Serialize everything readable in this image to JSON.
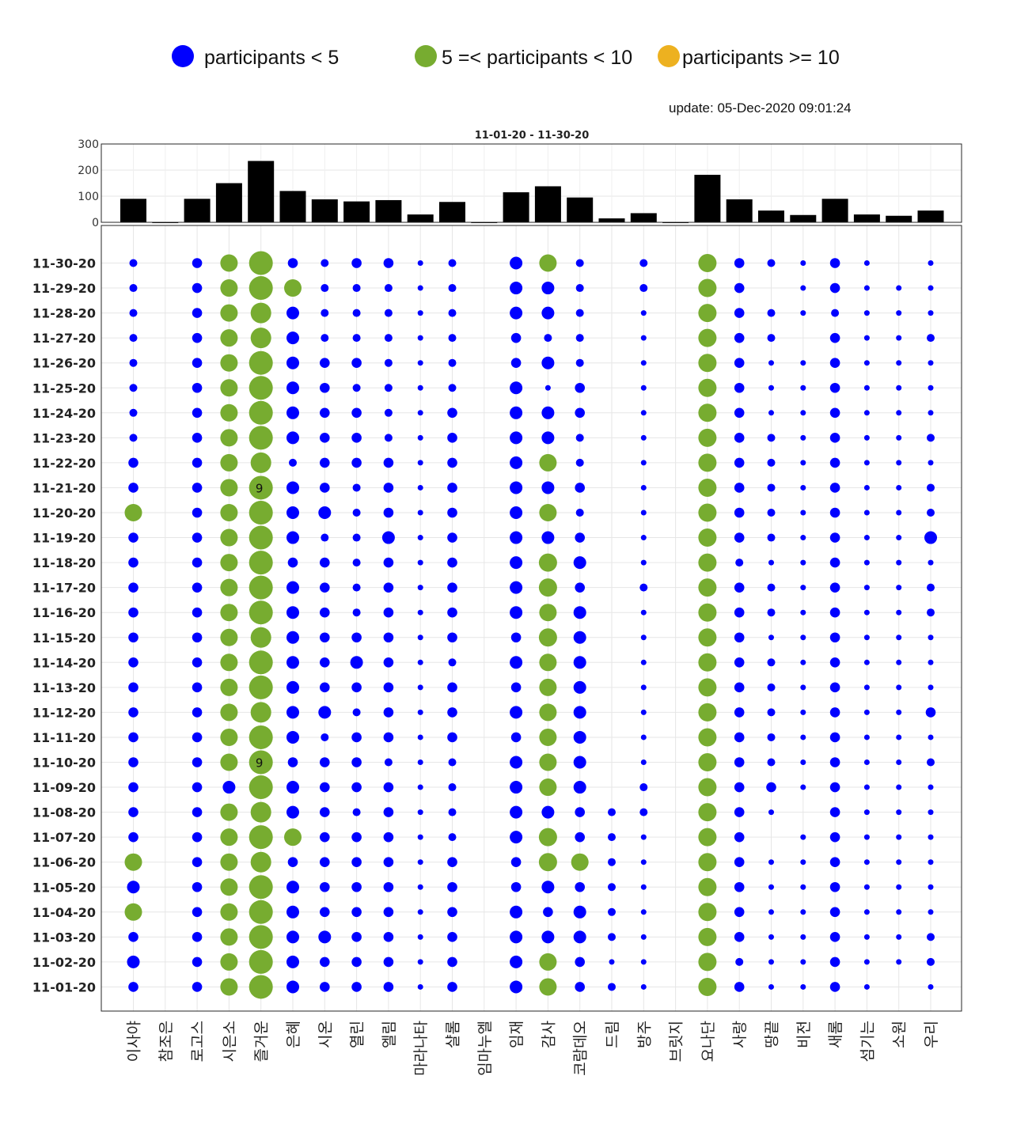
{
  "legend": [
    {
      "label": "participants < 5",
      "color": "#0000ff"
    },
    {
      "label": "5 =< participants < 10",
      "color": "#77ac30"
    },
    {
      "label": "participants >= 10",
      "color": "#edb120"
    }
  ],
  "update_text": "update: 05-Dec-2020 09:01:24",
  "chart_data": [
    {
      "type": "bar",
      "title": "11-01-20 - 11-30-20",
      "categories": [
        "이사야",
        "참조은",
        "로고스",
        "시은소",
        "즐거운",
        "은혜",
        "시온",
        "열린",
        "엘림",
        "마라나타",
        "샬롬",
        "임마누엘",
        "임재",
        "감사",
        "코람데오",
        "드림",
        "방주",
        "브릿지",
        "요나단",
        "사랑",
        "땅끝",
        "비전",
        "새롬",
        "섬기는",
        "소원",
        "우리"
      ],
      "values": [
        90,
        0,
        90,
        150,
        235,
        120,
        88,
        80,
        85,
        30,
        78,
        0,
        115,
        138,
        95,
        15,
        35,
        0,
        182,
        88,
        45,
        28,
        90,
        30,
        25,
        45
      ],
      "ylim": [
        0,
        300
      ],
      "yticks": [
        0,
        100,
        200,
        300
      ],
      "color": "#000000"
    },
    {
      "type": "scatter",
      "subtype": "bubble",
      "categories": [
        "이사야",
        "참조은",
        "로고스",
        "시은소",
        "즐거운",
        "은혜",
        "시온",
        "열린",
        "엘림",
        "마라나타",
        "샬롬",
        "임마누엘",
        "임재",
        "감사",
        "코람데오",
        "드림",
        "방주",
        "브릿지",
        "요나단",
        "사랑",
        "땅끝",
        "비전",
        "새롬",
        "섬기는",
        "소원",
        "우리"
      ],
      "dates": [
        "11-30-20",
        "11-29-20",
        "11-28-20",
        "11-27-20",
        "11-26-20",
        "11-25-20",
        "11-24-20",
        "11-23-20",
        "11-22-20",
        "11-21-20",
        "11-20-20",
        "11-19-20",
        "11-18-20",
        "11-17-20",
        "11-16-20",
        "11-15-20",
        "11-14-20",
        "11-13-20",
        "11-12-20",
        "11-11-20",
        "11-10-20",
        "11-09-20",
        "11-08-20",
        "11-07-20",
        "11-06-20",
        "11-05-20",
        "11-04-20",
        "11-03-20",
        "11-02-20",
        "11-01-20"
      ],
      "participants": [
        [
          2,
          0,
          3,
          6,
          9,
          3,
          2,
          3,
          3,
          1,
          2,
          0,
          4,
          6,
          2,
          0,
          2,
          0,
          7,
          3,
          2,
          1,
          3,
          1,
          0,
          1
        ],
        [
          2,
          0,
          3,
          6,
          9,
          6,
          2,
          2,
          2,
          1,
          2,
          0,
          4,
          4,
          2,
          0,
          2,
          0,
          7,
          3,
          0,
          1,
          3,
          1,
          1,
          1
        ],
        [
          2,
          0,
          3,
          6,
          8,
          4,
          2,
          2,
          2,
          1,
          2,
          0,
          4,
          4,
          2,
          0,
          1,
          0,
          7,
          3,
          2,
          1,
          2,
          1,
          1,
          1
        ],
        [
          2,
          0,
          3,
          6,
          8,
          4,
          2,
          2,
          2,
          1,
          2,
          0,
          3,
          2,
          2,
          0,
          1,
          0,
          7,
          3,
          2,
          0,
          3,
          1,
          1,
          2
        ],
        [
          2,
          0,
          3,
          6,
          9,
          4,
          3,
          3,
          2,
          1,
          2,
          0,
          3,
          4,
          2,
          0,
          1,
          0,
          7,
          3,
          1,
          1,
          3,
          1,
          1,
          1
        ],
        [
          2,
          0,
          3,
          6,
          9,
          4,
          3,
          2,
          2,
          1,
          2,
          0,
          4,
          1,
          3,
          0,
          1,
          0,
          7,
          3,
          1,
          1,
          3,
          1,
          1,
          1
        ],
        [
          2,
          0,
          3,
          6,
          9,
          4,
          3,
          3,
          2,
          1,
          3,
          0,
          4,
          4,
          3,
          0,
          1,
          0,
          7,
          3,
          1,
          1,
          3,
          1,
          1,
          1
        ],
        [
          2,
          0,
          3,
          6,
          9,
          4,
          3,
          3,
          2,
          1,
          3,
          0,
          4,
          4,
          2,
          0,
          1,
          0,
          7,
          3,
          2,
          1,
          3,
          1,
          1,
          2
        ],
        [
          3,
          0,
          3,
          6,
          8,
          2,
          3,
          3,
          3,
          1,
          3,
          0,
          4,
          6,
          2,
          0,
          1,
          0,
          7,
          3,
          2,
          1,
          3,
          1,
          1,
          1
        ],
        [
          3,
          0,
          3,
          6,
          9,
          4,
          3,
          2,
          3,
          1,
          3,
          0,
          4,
          4,
          3,
          0,
          1,
          0,
          7,
          3,
          2,
          1,
          3,
          1,
          1,
          2
        ],
        [
          6,
          0,
          3,
          6,
          9,
          4,
          4,
          2,
          3,
          1,
          3,
          0,
          4,
          6,
          2,
          0,
          1,
          0,
          7,
          3,
          2,
          1,
          3,
          1,
          1,
          2
        ],
        [
          3,
          0,
          3,
          6,
          9,
          4,
          2,
          2,
          4,
          1,
          3,
          0,
          4,
          4,
          3,
          0,
          1,
          0,
          7,
          3,
          2,
          1,
          3,
          1,
          1,
          4
        ],
        [
          3,
          0,
          3,
          6,
          9,
          3,
          3,
          2,
          3,
          1,
          3,
          0,
          4,
          7,
          4,
          0,
          1,
          0,
          7,
          2,
          1,
          1,
          3,
          1,
          1,
          1
        ],
        [
          3,
          0,
          3,
          6,
          9,
          4,
          3,
          2,
          3,
          1,
          3,
          0,
          4,
          7,
          3,
          0,
          2,
          0,
          7,
          3,
          2,
          1,
          3,
          1,
          1,
          2
        ],
        [
          3,
          0,
          3,
          6,
          9,
          4,
          3,
          2,
          3,
          1,
          3,
          0,
          4,
          6,
          4,
          0,
          1,
          0,
          7,
          3,
          2,
          1,
          3,
          1,
          1,
          2
        ],
        [
          3,
          0,
          3,
          6,
          8,
          4,
          3,
          3,
          3,
          1,
          3,
          0,
          3,
          7,
          4,
          0,
          1,
          0,
          7,
          3,
          1,
          1,
          3,
          1,
          1,
          1
        ],
        [
          3,
          0,
          3,
          6,
          9,
          4,
          3,
          4,
          3,
          1,
          2,
          0,
          4,
          6,
          4,
          0,
          1,
          0,
          7,
          3,
          2,
          1,
          3,
          1,
          1,
          1
        ],
        [
          3,
          0,
          3,
          6,
          9,
          4,
          3,
          3,
          3,
          1,
          3,
          0,
          3,
          6,
          4,
          0,
          1,
          0,
          7,
          3,
          2,
          1,
          3,
          1,
          1,
          1
        ],
        [
          3,
          0,
          3,
          6,
          8,
          4,
          4,
          2,
          3,
          1,
          3,
          0,
          4,
          6,
          4,
          0,
          1,
          0,
          7,
          3,
          2,
          1,
          3,
          1,
          1,
          3
        ],
        [
          3,
          0,
          3,
          6,
          9,
          4,
          2,
          3,
          3,
          1,
          3,
          0,
          3,
          6,
          4,
          0,
          1,
          0,
          7,
          3,
          2,
          1,
          3,
          1,
          1,
          1
        ],
        [
          3,
          0,
          3,
          6,
          9,
          3,
          3,
          3,
          2,
          1,
          2,
          0,
          4,
          6,
          4,
          0,
          1,
          0,
          7,
          3,
          2,
          1,
          3,
          1,
          1,
          2
        ],
        [
          3,
          0,
          3,
          4,
          9,
          4,
          3,
          3,
          3,
          1,
          2,
          0,
          4,
          6,
          4,
          0,
          2,
          0,
          7,
          3,
          3,
          1,
          3,
          1,
          1,
          1
        ],
        [
          3,
          0,
          3,
          6,
          8,
          4,
          3,
          2,
          3,
          1,
          2,
          0,
          4,
          4,
          3,
          2,
          2,
          0,
          7,
          3,
          1,
          0,
          3,
          1,
          1,
          1
        ],
        [
          3,
          0,
          3,
          6,
          9,
          6,
          3,
          3,
          3,
          1,
          2,
          0,
          4,
          7,
          3,
          2,
          1,
          0,
          7,
          3,
          0,
          1,
          3,
          1,
          1,
          1
        ],
        [
          6,
          0,
          3,
          6,
          8,
          3,
          3,
          3,
          3,
          1,
          3,
          0,
          3,
          7,
          6,
          2,
          1,
          0,
          7,
          3,
          1,
          1,
          3,
          1,
          1,
          1
        ],
        [
          4,
          0,
          3,
          6,
          9,
          4,
          3,
          3,
          3,
          1,
          3,
          0,
          3,
          4,
          3,
          2,
          1,
          0,
          7,
          3,
          1,
          1,
          3,
          1,
          1,
          1
        ],
        [
          6,
          0,
          3,
          6,
          9,
          4,
          3,
          3,
          3,
          1,
          3,
          0,
          4,
          3,
          4,
          2,
          1,
          0,
          7,
          3,
          1,
          1,
          3,
          1,
          1,
          1
        ],
        [
          3,
          0,
          3,
          6,
          9,
          4,
          4,
          3,
          3,
          1,
          3,
          0,
          4,
          4,
          4,
          2,
          1,
          0,
          7,
          3,
          1,
          1,
          3,
          1,
          1,
          2
        ],
        [
          4,
          0,
          3,
          6,
          9,
          4,
          3,
          3,
          3,
          1,
          3,
          0,
          4,
          6,
          3,
          1,
          1,
          0,
          7,
          2,
          1,
          1,
          3,
          1,
          1,
          2
        ],
        [
          3,
          0,
          3,
          6,
          9,
          4,
          3,
          3,
          3,
          1,
          3,
          0,
          4,
          6,
          3,
          2,
          1,
          0,
          7,
          3,
          1,
          1,
          3,
          1,
          0,
          1
        ]
      ],
      "point_labels": [
        {
          "date": "11-21-20",
          "category": "즐거운",
          "text": "9"
        },
        {
          "date": "11-10-20",
          "category": "즐거운",
          "text": "9"
        }
      ],
      "color_thresholds": {
        "low": 5,
        "high": 10
      }
    }
  ]
}
